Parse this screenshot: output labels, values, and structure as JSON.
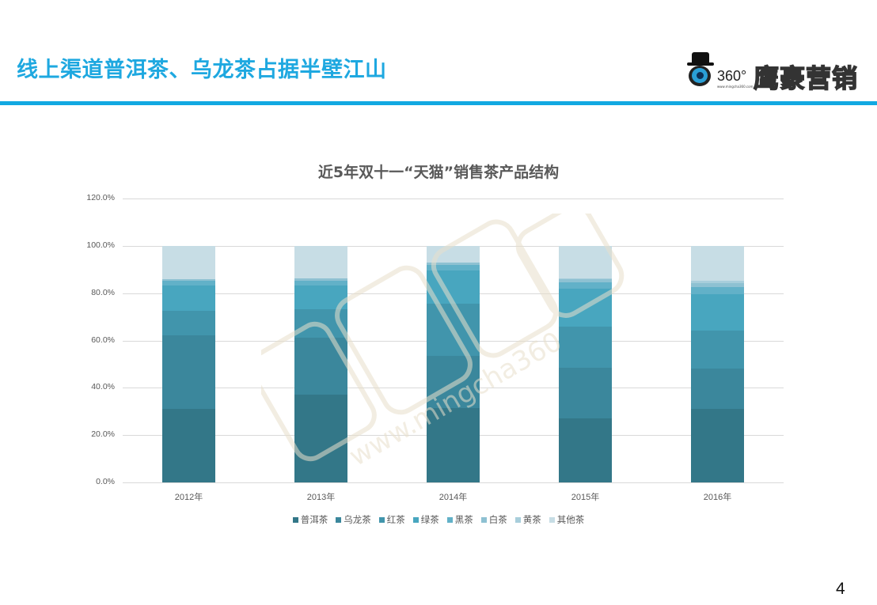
{
  "slide": {
    "title": "线上渠道普洱茶、乌龙茶占据半壁江山",
    "page_number": "4",
    "accent_color": "#12a9e2"
  },
  "logo": {
    "number": "360°",
    "url": "www.mingcha360.com",
    "brand": "鹰豪营销"
  },
  "watermark": {
    "text": "www.mingcha360"
  },
  "chart_data": {
    "type": "bar",
    "stacked": true,
    "title": "近5年双十一“天猫”销售茶产品结构",
    "xlabel": "",
    "ylabel": "",
    "ylim": [
      0,
      120
    ],
    "yticks": [
      "0.0%",
      "20.0%",
      "40.0%",
      "60.0%",
      "80.0%",
      "100.0%",
      "120.0%"
    ],
    "grid": true,
    "legend_position": "bottom",
    "categories": [
      "2012年",
      "2013年",
      "2014年",
      "2015年",
      "2016年"
    ],
    "series": [
      {
        "name": "普洱茶",
        "color": "#337788",
        "values": [
          31.2,
          37.0,
          31.4,
          27.1,
          31.2
        ]
      },
      {
        "name": "乌龙茶",
        "color": "#3b879c",
        "values": [
          31.0,
          24.2,
          22.1,
          21.4,
          17.1
        ]
      },
      {
        "name": "红茶",
        "color": "#4195ac",
        "values": [
          10.5,
          11.9,
          22.1,
          17.3,
          16.0
        ]
      },
      {
        "name": "绿茶",
        "color": "#48a6bf",
        "values": [
          10.6,
          10.2,
          14.1,
          16.1,
          15.4
        ]
      },
      {
        "name": "黑茶",
        "color": "#62b1c8",
        "values": [
          2.0,
          2.0,
          2.3,
          2.6,
          3.0
        ]
      },
      {
        "name": "白茶",
        "color": "#8ec1d2",
        "values": [
          0.5,
          0.8,
          1.1,
          1.3,
          1.5
        ]
      },
      {
        "name": "黄茶",
        "color": "#a8cedb",
        "values": [
          0.0,
          0.0,
          0.0,
          0.6,
          1.1
        ]
      },
      {
        "name": "其他茶",
        "color": "#c7dde5",
        "values": [
          14.2,
          13.9,
          6.9,
          13.6,
          14.7
        ]
      }
    ]
  }
}
